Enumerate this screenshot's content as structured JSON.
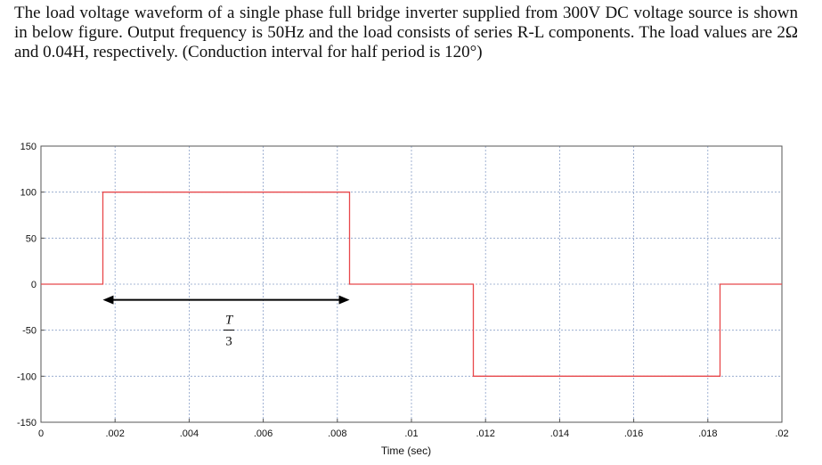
{
  "problem": {
    "text": "The load voltage waveform of a single phase full bridge inverter supplied from 300V DC voltage source is shown in below figure. Output frequency is 50Hz and the load consists of series R-L components. The load values are 2Ω and 0.04H, respectively. (Conduction interval for half period is 120°)"
  },
  "chart_data": {
    "type": "line",
    "xlabel": "Time (sec)",
    "ylabel": "",
    "xlim": [
      0,
      0.02
    ],
    "ylim": [
      -150,
      150
    ],
    "x_ticks": [
      0,
      0.002,
      0.004,
      0.006,
      0.008,
      0.01,
      0.012,
      0.014,
      0.016,
      0.018,
      0.02
    ],
    "x_tick_labels": [
      "0",
      ".002",
      ".004",
      ".006",
      ".008",
      ".01",
      ".012",
      ".014",
      ".016",
      ".018",
      ".02"
    ],
    "y_ticks": [
      150,
      100,
      50,
      0,
      -50,
      -100,
      -150
    ],
    "y_tick_labels": [
      "150",
      "100",
      "50",
      "0",
      "-50",
      "-100",
      "-150"
    ],
    "grid": true,
    "series": [
      {
        "color": "#e8484b",
        "x": [
          0,
          0.00167,
          0.00167,
          0.00833,
          0.00833,
          0.01167,
          0.01167,
          0.01833,
          0.01833,
          0.02
        ],
        "y": [
          0,
          0,
          100,
          100,
          0,
          0,
          -100,
          -100,
          0,
          0
        ]
      }
    ],
    "annotation": {
      "x_start": 0.00167,
      "x_end": 0.00833,
      "y": -17,
      "numerator": "T",
      "denominator": "3"
    }
  }
}
